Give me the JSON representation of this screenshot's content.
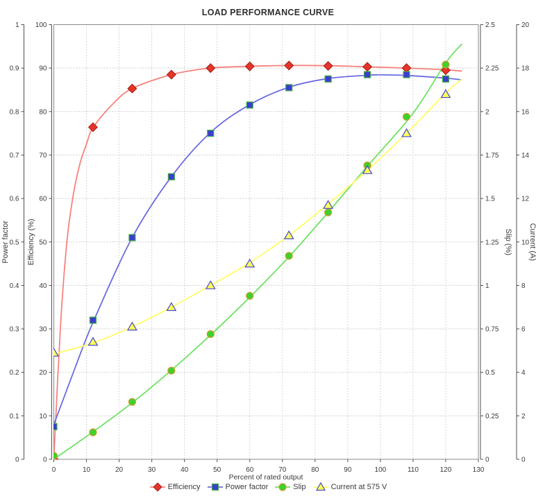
{
  "title": "LOAD PERFORMANCE CURVE",
  "legend_position": "bottom",
  "chart_data": {
    "type": "line",
    "title": "LOAD PERFORMANCE CURVE",
    "xlabel": "Percent of rated output",
    "grid": "on",
    "x_axis": {
      "min": 0,
      "max": 130,
      "ticks": [
        "0",
        "10",
        "20",
        "30",
        "40",
        "50",
        "60",
        "70",
        "80",
        "90",
        "100",
        "110",
        "120",
        "130"
      ]
    },
    "axes": {
      "power_factor": {
        "label": "Power factor",
        "min": 0,
        "max": 1,
        "ticks": [
          "0",
          "0.1",
          "0.2",
          "0.3",
          "0.4",
          "0.5",
          "0.6",
          "0.7",
          "0.8",
          "0.9",
          "1"
        ]
      },
      "efficiency": {
        "label": "Efficiency (%)",
        "min": 0,
        "max": 100,
        "ticks": [
          "0",
          "10",
          "20",
          "30",
          "40",
          "50",
          "60",
          "70",
          "80",
          "90",
          "100"
        ]
      },
      "slip": {
        "label": "Slip (%)",
        "min": 0,
        "max": 2.5,
        "ticks": [
          "0",
          "0.25",
          "0.5",
          "0.75",
          "1",
          "1.25",
          "1.5",
          "1.75",
          "2",
          "2.25",
          "2.5"
        ]
      },
      "current": {
        "label": "Current (A)",
        "min": 0,
        "max": 20,
        "ticks": [
          "0",
          "2",
          "4",
          "6",
          "8",
          "10",
          "12",
          "14",
          "16",
          "18",
          "20"
        ]
      }
    },
    "x": [
      0,
      12,
      24,
      36,
      48,
      60,
      72,
      84,
      96,
      108,
      120
    ],
    "series": [
      {
        "name": "Efficiency",
        "marker": "diamond",
        "axis": "efficiency",
        "axis_max": 100,
        "color": "#e8352a",
        "outline": "#a8241c",
        "line_color": "#f8827c",
        "values": [
          0,
          76.4,
          85.3,
          88.5,
          90.0,
          90.4,
          90.6,
          90.5,
          90.3,
          90.0,
          89.5
        ],
        "line": {
          "x": [
            0,
            2,
            4,
            6,
            8,
            10,
            12,
            18,
            24,
            36,
            48,
            60,
            72,
            84,
            96,
            108,
            120,
            125
          ],
          "y": [
            0,
            30,
            50,
            61,
            68,
            72.5,
            76.3,
            81.7,
            85.3,
            88.5,
            90.0,
            90.4,
            90.6,
            90.55,
            90.3,
            90.0,
            89.6,
            89.3
          ]
        }
      },
      {
        "name": "Power factor",
        "marker": "square",
        "axis": "power_factor",
        "axis_max": 1,
        "color": "#3c3cd2",
        "outline": "#3faf3f",
        "line_color": "#6b6be0",
        "values": [
          0.075,
          0.32,
          0.51,
          0.65,
          0.75,
          0.815,
          0.855,
          0.875,
          0.885,
          0.885,
          0.875
        ],
        "line": {
          "x": [
            0,
            3,
            6,
            12,
            24,
            36,
            48,
            60,
            72,
            84,
            96,
            100,
            108,
            120,
            125
          ],
          "y": [
            0.08,
            0.14,
            0.2,
            0.315,
            0.51,
            0.65,
            0.752,
            0.816,
            0.856,
            0.876,
            0.8835,
            0.8845,
            0.883,
            0.877,
            0.873
          ]
        }
      },
      {
        "name": "Slip",
        "marker": "circle",
        "axis": "slip",
        "axis_max": 2.5,
        "color": "#3bd32b",
        "outline": "#d39a31",
        "line_color": "#6fe263",
        "values": [
          0.02,
          0.155,
          0.33,
          0.51,
          0.72,
          0.94,
          1.17,
          1.42,
          1.69,
          1.97,
          2.27
        ],
        "line": {
          "x": [
            0,
            24,
            48,
            72,
            96,
            110,
            120,
            125
          ],
          "y": [
            0.0,
            0.325,
            0.715,
            1.165,
            1.685,
            1.99,
            2.28,
            2.39
          ]
        }
      },
      {
        "name": "Current at 575 V",
        "marker": "triangle",
        "axis": "current",
        "axis_max": 20,
        "color": "#ffff5c",
        "outline": "#4646cf",
        "line_color": "#ffff66",
        "values": [
          4.9,
          5.4,
          6.1,
          7.0,
          8.0,
          9.0,
          10.3,
          11.7,
          13.3,
          15.0,
          16.8
        ],
        "line": {
          "x": [
            0,
            12,
            24,
            36,
            48,
            60,
            72,
            84,
            96,
            108,
            120,
            125
          ],
          "y": [
            4.85,
            5.35,
            6.1,
            7.0,
            8.0,
            9.05,
            10.3,
            11.75,
            13.3,
            15.0,
            16.85,
            17.5
          ]
        }
      }
    ]
  }
}
